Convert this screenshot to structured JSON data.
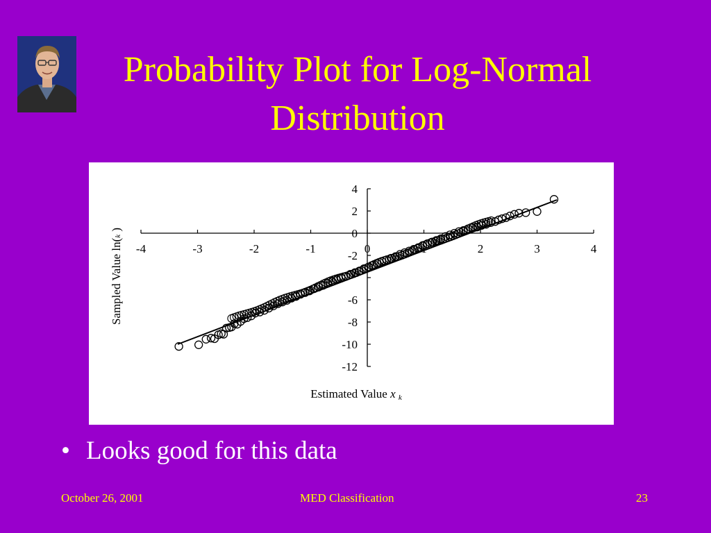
{
  "slide": {
    "title": "Probability Plot for Log-Normal Distribution",
    "bullets": [
      "Looks good for this data"
    ],
    "footer": {
      "date": "October 26, 2001",
      "center": "MED Classification",
      "page": "23"
    },
    "colors": {
      "background": "#9900CC",
      "title": "#FFFF00",
      "bullet": "#FFFFFF",
      "footer": "#FFFF00"
    },
    "photo_icon": "portrait-photo-icon"
  },
  "chart_data": {
    "type": "scatter",
    "xlabel": "Estimated Value x",
    "xlabel_main": "Estimated Value ",
    "xlabel_var": "x",
    "xlabel_sub": "k",
    "ylabel": "Sampled Value ln( k )",
    "ylabel_main": "Sampled Value ln(",
    "ylabel_sub": "k",
    "ylabel_end": " )",
    "xlim": [
      -4,
      4
    ],
    "ylim": [
      -12,
      4
    ],
    "xticks": [
      -4,
      -3,
      -2,
      -1,
      0,
      1,
      2,
      3,
      4
    ],
    "yticks": [
      4,
      2,
      0,
      -2,
      -4,
      -6,
      -8,
      -10,
      -12
    ],
    "xtick_labels": [
      "-4",
      "-3",
      "-2",
      "-1",
      "0",
      "1",
      "2",
      "3",
      "4"
    ],
    "ytick_labels": [
      "4",
      "2",
      "0",
      "-2",
      "",
      "-6",
      "-8",
      "-10",
      "-12"
    ],
    "fit_line": {
      "x": [
        -3.35,
        3.35
      ],
      "y": [
        -10.0,
        3.0
      ]
    },
    "points": {
      "x": [
        -3.33,
        -2.98,
        -2.85,
        -2.76,
        -2.7,
        -2.63,
        -2.58,
        -2.54,
        -2.49,
        -2.44,
        -2.4,
        -2.35,
        -2.3,
        -2.24,
        -2.18,
        -2.12,
        -2.05,
        -1.98,
        -1.9,
        -1.82,
        -1.74,
        -1.66,
        -1.58,
        -1.5,
        -1.42,
        -1.34,
        -1.26,
        -1.18,
        -1.1,
        -1.02,
        -0.94,
        -0.86,
        -0.78,
        -0.7,
        -0.62,
        -0.54,
        -0.46,
        -0.38,
        -0.3,
        -0.22,
        -0.14,
        -0.06,
        0.02,
        0.1,
        0.18,
        0.26,
        0.34,
        0.42,
        0.5,
        0.58,
        0.66,
        0.74,
        0.82,
        0.9,
        0.98,
        1.06,
        1.14,
        1.22,
        1.3,
        1.38,
        1.46,
        1.54,
        1.62,
        1.7,
        1.78,
        1.86,
        1.94,
        2.02,
        2.1,
        2.18,
        2.26,
        2.32,
        2.38,
        2.45,
        2.52,
        2.6,
        2.68,
        2.8,
        3.0,
        3.3
      ],
      "y": [
        -10.2,
        -10.05,
        -9.55,
        -9.45,
        -9.5,
        -9.15,
        -9.05,
        -9.1,
        -8.55,
        -8.5,
        -8.45,
        -8.15,
        -8.2,
        -7.95,
        -7.7,
        -7.6,
        -7.45,
        -7.2,
        -7.1,
        -6.95,
        -6.75,
        -6.55,
        -6.35,
        -6.2,
        -6.05,
        -5.85,
        -5.7,
        -5.5,
        -5.35,
        -5.2,
        -5.0,
        -4.85,
        -4.7,
        -4.5,
        -4.35,
        -4.2,
        -4.05,
        -3.9,
        -3.7,
        -3.55,
        -3.4,
        -3.2,
        -3.05,
        -2.9,
        -2.75,
        -2.55,
        -2.4,
        -2.25,
        -2.1,
        -1.9,
        -1.75,
        -1.6,
        -1.45,
        -1.3,
        -1.1,
        -0.95,
        -0.8,
        -0.65,
        -0.5,
        -0.3,
        -0.15,
        0.0,
        0.15,
        0.25,
        0.4,
        0.5,
        0.55,
        0.7,
        0.8,
        0.95,
        1.05,
        1.2,
        1.3,
        1.4,
        1.55,
        1.7,
        1.8,
        1.85,
        1.95,
        3.05
      ]
    },
    "grid": false,
    "legend": "none"
  }
}
